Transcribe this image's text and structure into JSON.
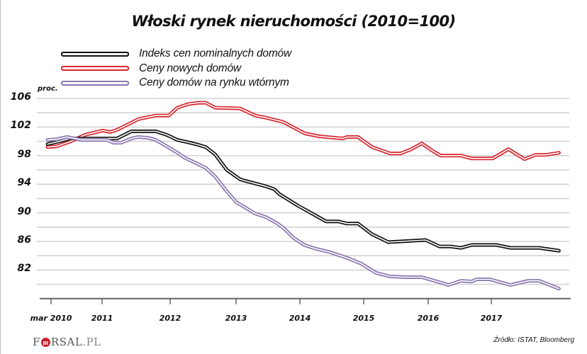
{
  "title": "Włoski rynek nieruchomości (2010=100)",
  "unit_label": "proc.",
  "source": "Źródło: ISTAT,  Bloomberg",
  "logo": {
    "prefix": "F",
    "suffix": "RSAL",
    "domain": ".PL"
  },
  "legend": [
    {
      "label": "Indeks cen nominalnych domów",
      "color": "#111111"
    },
    {
      "label": "Ceny nowych domów",
      "color": "#d7262e"
    },
    {
      "label": "Ceny domów na rynku wtórnym",
      "color": "#8a77b0"
    }
  ],
  "chart_data": {
    "type": "line",
    "title": "Włoski rynek nieruchomości (2010=100)",
    "xlabel": "",
    "ylabel": "proc.",
    "ylim": [
      78,
      106
    ],
    "yticks": [
      106,
      102,
      98,
      94,
      90,
      86,
      82
    ],
    "ygrid_step": 2,
    "grid": true,
    "legend_position": "top-left",
    "xticks": [
      {
        "label": "mar 2010",
        "x": 2010.167
      },
      {
        "label": "2011",
        "x": 2011.0
      },
      {
        "label": "2012",
        "x": 2012.0
      },
      {
        "label": "2013",
        "x": 2013.0
      },
      {
        "label": "2014",
        "x": 2014.0
      },
      {
        "label": "2015",
        "x": 2015.0
      },
      {
        "label": "2016",
        "x": 2016.0
      },
      {
        "label": "2017",
        "x": 2017.0
      }
    ],
    "series": [
      {
        "name": "Indeks cen nominalnych domów",
        "color": "#111111",
        "points": [
          [
            2010.11,
            99.6
          ],
          [
            2010.49,
            100.4
          ],
          [
            2011.22,
            100.4
          ],
          [
            2011.43,
            101.4
          ],
          [
            2011.79,
            101.4
          ],
          [
            2011.95,
            100.9
          ],
          [
            2012.11,
            100.2
          ],
          [
            2012.3,
            99.8
          ],
          [
            2012.43,
            99.5
          ],
          [
            2012.54,
            99.2
          ],
          [
            2012.68,
            98.2
          ],
          [
            2012.86,
            96.0
          ],
          [
            2013.06,
            94.7
          ],
          [
            2013.13,
            94.5
          ],
          [
            2013.47,
            93.7
          ],
          [
            2013.6,
            93.3
          ],
          [
            2013.68,
            92.6
          ],
          [
            2013.97,
            91.0
          ],
          [
            2014.19,
            89.9
          ],
          [
            2014.41,
            88.8
          ],
          [
            2014.6,
            88.8
          ],
          [
            2014.74,
            88.5
          ],
          [
            2014.91,
            88.5
          ],
          [
            2015.13,
            87.0
          ],
          [
            2015.27,
            86.4
          ],
          [
            2015.38,
            85.9
          ],
          [
            2015.57,
            86.0
          ],
          [
            2015.96,
            86.2
          ],
          [
            2016.18,
            85.3
          ],
          [
            2016.35,
            85.3
          ],
          [
            2016.52,
            85.1
          ],
          [
            2016.69,
            85.5
          ],
          [
            2017.08,
            85.5
          ],
          [
            2017.3,
            85.1
          ],
          [
            2017.75,
            85.1
          ],
          [
            2018.06,
            84.7
          ]
        ]
      },
      {
        "name": "Ceny nowych domów",
        "color": "#d7262e",
        "points": [
          [
            2010.11,
            99.2
          ],
          [
            2010.26,
            99.3
          ],
          [
            2010.49,
            100.0
          ],
          [
            2010.72,
            100.9
          ],
          [
            2011.01,
            101.5
          ],
          [
            2011.12,
            101.3
          ],
          [
            2011.22,
            101.6
          ],
          [
            2011.43,
            102.6
          ],
          [
            2011.53,
            103.1
          ],
          [
            2011.79,
            103.6
          ],
          [
            2011.98,
            103.6
          ],
          [
            2012.11,
            104.7
          ],
          [
            2012.27,
            105.2
          ],
          [
            2012.43,
            105.4
          ],
          [
            2012.54,
            105.4
          ],
          [
            2012.68,
            104.7
          ],
          [
            2013.06,
            104.6
          ],
          [
            2013.3,
            103.6
          ],
          [
            2013.47,
            103.3
          ],
          [
            2013.74,
            102.7
          ],
          [
            2013.97,
            101.6
          ],
          [
            2014.08,
            101.1
          ],
          [
            2014.3,
            100.7
          ],
          [
            2014.67,
            100.4
          ],
          [
            2014.74,
            100.6
          ],
          [
            2014.91,
            100.6
          ],
          [
            2015.13,
            99.2
          ],
          [
            2015.35,
            98.5
          ],
          [
            2015.41,
            98.3
          ],
          [
            2015.57,
            98.3
          ],
          [
            2015.74,
            98.9
          ],
          [
            2015.9,
            99.7
          ],
          [
            2016.08,
            98.6
          ],
          [
            2016.2,
            98.0
          ],
          [
            2016.52,
            98.0
          ],
          [
            2016.69,
            97.6
          ],
          [
            2017.02,
            97.6
          ],
          [
            2017.27,
            98.9
          ],
          [
            2017.52,
            97.5
          ],
          [
            2017.69,
            98.1
          ],
          [
            2017.85,
            98.1
          ],
          [
            2018.06,
            98.4
          ]
        ]
      },
      {
        "name": "Ceny domów na rynku wtórnym",
        "color": "#8a77b0",
        "points": [
          [
            2010.11,
            100.2
          ],
          [
            2010.26,
            100.3
          ],
          [
            2010.43,
            100.6
          ],
          [
            2010.67,
            100.2
          ],
          [
            2011.07,
            100.2
          ],
          [
            2011.17,
            99.8
          ],
          [
            2011.28,
            99.8
          ],
          [
            2011.43,
            100.4
          ],
          [
            2011.53,
            100.6
          ],
          [
            2011.67,
            100.5
          ],
          [
            2011.79,
            100.2
          ],
          [
            2011.95,
            99.3
          ],
          [
            2012.11,
            98.4
          ],
          [
            2012.22,
            97.7
          ],
          [
            2012.38,
            97.0
          ],
          [
            2012.54,
            96.3
          ],
          [
            2012.68,
            95.1
          ],
          [
            2012.86,
            93.0
          ],
          [
            2013.0,
            91.5
          ],
          [
            2013.3,
            89.9
          ],
          [
            2013.47,
            89.4
          ],
          [
            2013.63,
            88.6
          ],
          [
            2013.74,
            87.9
          ],
          [
            2013.9,
            86.5
          ],
          [
            2014.07,
            85.5
          ],
          [
            2014.24,
            85.0
          ],
          [
            2014.47,
            84.5
          ],
          [
            2014.74,
            83.7
          ],
          [
            2014.96,
            82.9
          ],
          [
            2015.19,
            81.6
          ],
          [
            2015.41,
            81.1
          ],
          [
            2015.68,
            81.0
          ],
          [
            2015.9,
            81.0
          ],
          [
            2016.18,
            80.3
          ],
          [
            2016.32,
            79.9
          ],
          [
            2016.52,
            80.5
          ],
          [
            2016.69,
            80.4
          ],
          [
            2016.77,
            80.7
          ],
          [
            2016.98,
            80.7
          ],
          [
            2017.3,
            79.9
          ],
          [
            2017.58,
            80.5
          ],
          [
            2017.75,
            80.5
          ],
          [
            2018.06,
            79.4
          ]
        ]
      }
    ]
  }
}
